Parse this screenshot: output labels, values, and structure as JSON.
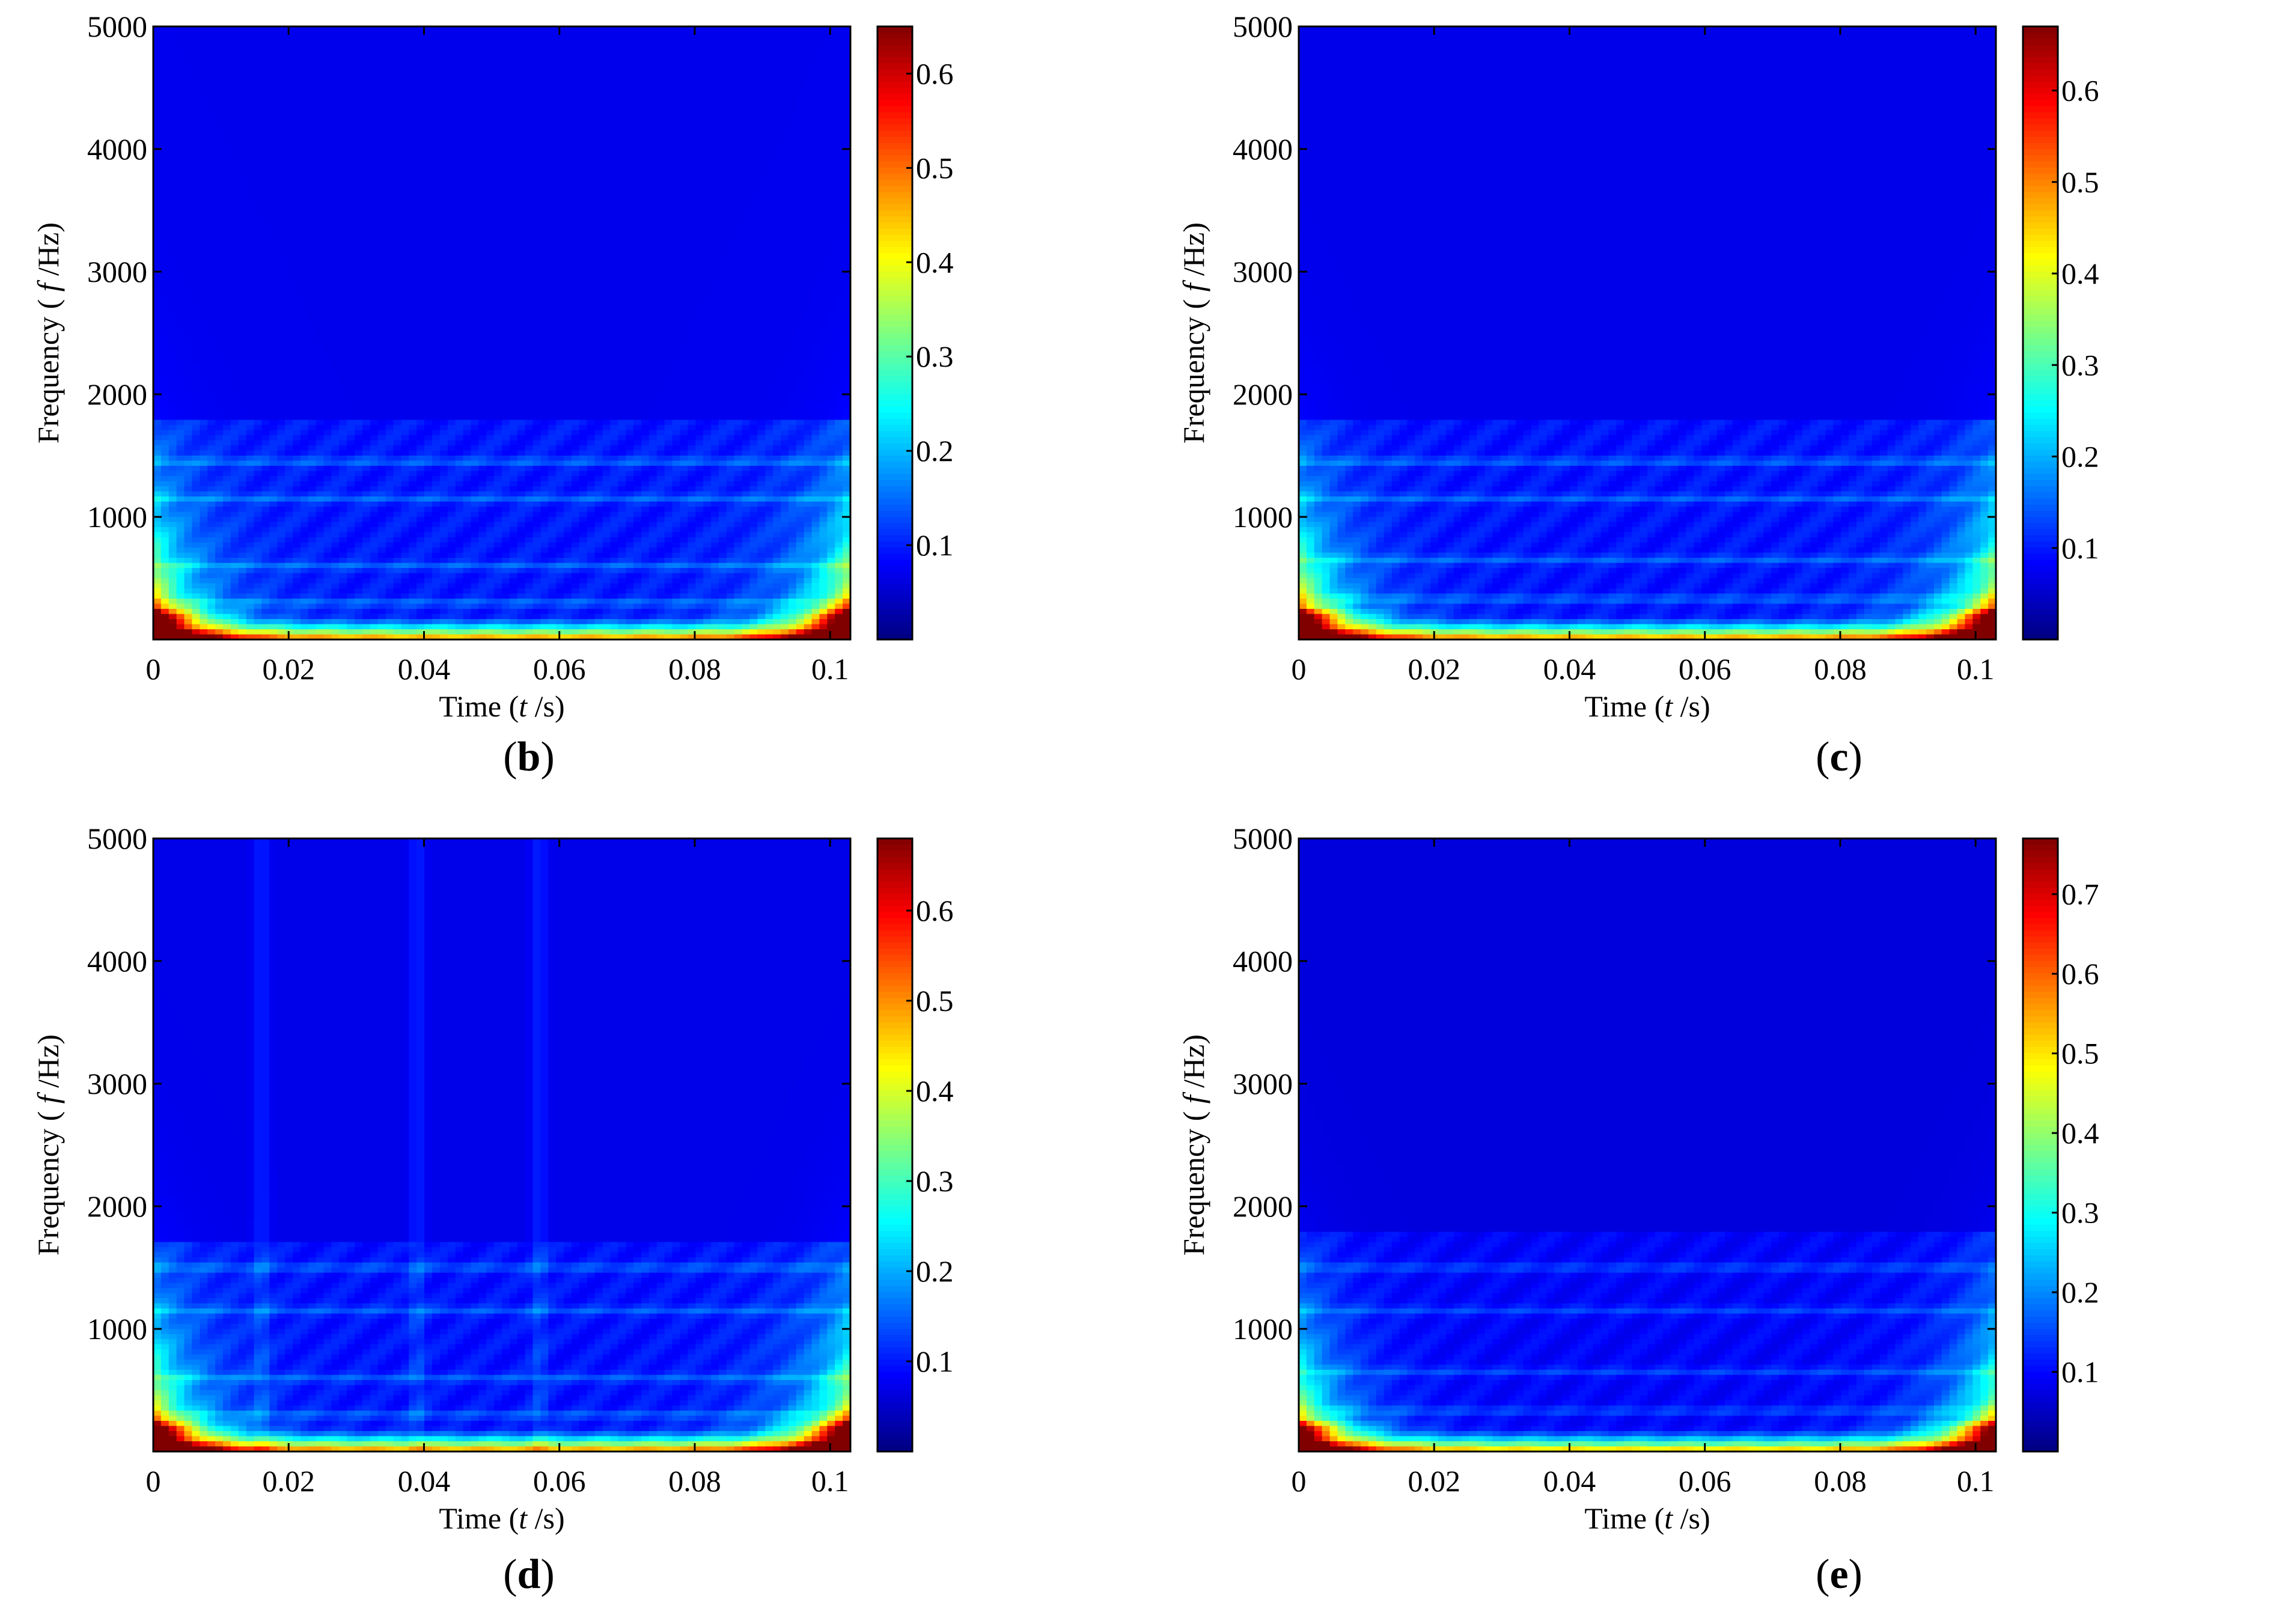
{
  "chart_data": [
    {
      "type": "heatmap",
      "panel": "b",
      "caption_open": "(",
      "caption_letter": "b",
      "caption_close": ")",
      "xlabel": {
        "pre": "Time (",
        "var": "t",
        "post": " /s)"
      },
      "ylabel": {
        "pre": "Frequency ( ",
        "var": "f",
        "post": " /Hz)"
      },
      "xlim": [
        0,
        0.103
      ],
      "ylim": [
        0,
        5000
      ],
      "xticks": [
        0,
        0.02,
        0.04,
        0.06,
        0.08,
        0.1
      ],
      "xtick_labels": [
        "0",
        "0.02",
        "0.04",
        "0.06",
        "0.08",
        "0.1"
      ],
      "yticks": [
        1000,
        2000,
        3000,
        4000,
        5000
      ],
      "ytick_labels": [
        "1000",
        "2000",
        "3000",
        "4000",
        "5000"
      ],
      "colorbar": {
        "min": 0,
        "max": 0.65,
        "ticks": [
          0.1,
          0.2,
          0.3,
          0.4,
          0.5,
          0.6
        ],
        "tick_labels": [
          "0.1",
          "0.2",
          "0.3",
          "0.4",
          "0.5",
          "0.6"
        ]
      },
      "features": {
        "band_top_hz": 1800,
        "low_peak": 0.62,
        "bands_hz": [
          120,
          300,
          600,
          1150,
          1450
        ],
        "vertical_streaks_s": []
      }
    },
    {
      "type": "heatmap",
      "panel": "c",
      "caption_open": "(",
      "caption_letter": "c",
      "caption_close": ")",
      "xlabel": {
        "pre": "Time (",
        "var": "t",
        "post": " /s)"
      },
      "ylabel": {
        "pre": "Frequency ( ",
        "var": "f",
        "post": " /Hz)"
      },
      "xlim": [
        0,
        0.103
      ],
      "ylim": [
        0,
        5000
      ],
      "xticks": [
        0,
        0.02,
        0.04,
        0.06,
        0.08,
        0.1
      ],
      "xtick_labels": [
        "0",
        "0.02",
        "0.04",
        "0.06",
        "0.08",
        "0.1"
      ],
      "yticks": [
        1000,
        2000,
        3000,
        4000,
        5000
      ],
      "ytick_labels": [
        "1000",
        "2000",
        "3000",
        "4000",
        "5000"
      ],
      "colorbar": {
        "min": 0,
        "max": 0.67,
        "ticks": [
          0.1,
          0.2,
          0.3,
          0.4,
          0.5,
          0.6
        ],
        "tick_labels": [
          "0.1",
          "0.2",
          "0.3",
          "0.4",
          "0.5",
          "0.6"
        ]
      },
      "features": {
        "band_top_hz": 1800,
        "low_peak": 0.64,
        "bands_hz": [
          120,
          330,
          650,
          1150,
          1450
        ],
        "vertical_streaks_s": []
      }
    },
    {
      "type": "heatmap",
      "panel": "d",
      "caption_open": "(",
      "caption_letter": "d",
      "caption_close": ")",
      "xlabel": {
        "pre": "Time (",
        "var": "t",
        "post": " /s)"
      },
      "ylabel": {
        "pre": "Frequency ( ",
        "var": "f",
        "post": " /Hz)"
      },
      "xlim": [
        0,
        0.103
      ],
      "ylim": [
        0,
        5000
      ],
      "xticks": [
        0,
        0.02,
        0.04,
        0.06,
        0.08,
        0.1
      ],
      "xtick_labels": [
        "0",
        "0.02",
        "0.04",
        "0.06",
        "0.08",
        "0.1"
      ],
      "yticks": [
        1000,
        2000,
        3000,
        4000,
        5000
      ],
      "ytick_labels": [
        "1000",
        "2000",
        "3000",
        "4000",
        "5000"
      ],
      "colorbar": {
        "min": 0,
        "max": 0.68,
        "ticks": [
          0.1,
          0.2,
          0.3,
          0.4,
          0.5,
          0.6
        ],
        "tick_labels": [
          "0.1",
          "0.2",
          "0.3",
          "0.4",
          "0.5",
          "0.6"
        ]
      },
      "features": {
        "band_top_hz": 1700,
        "low_peak": 0.66,
        "bands_hz": [
          120,
          300,
          600,
          1150,
          1500
        ],
        "vertical_streaks_s": [
          0.016,
          0.039,
          0.057
        ]
      }
    },
    {
      "type": "heatmap",
      "panel": "e",
      "caption_open": "(",
      "caption_letter": "e",
      "caption_close": ")",
      "xlabel": {
        "pre": "Time (",
        "var": "t",
        "post": " /s)"
      },
      "ylabel": {
        "pre": "Frequency ( ",
        "var": "f",
        "post": " /Hz)"
      },
      "xlim": [
        0,
        0.103
      ],
      "ylim": [
        0,
        5000
      ],
      "xticks": [
        0,
        0.02,
        0.04,
        0.06,
        0.08,
        0.1
      ],
      "xtick_labels": [
        "0",
        "0.02",
        "0.04",
        "0.06",
        "0.08",
        "0.1"
      ],
      "yticks": [
        1000,
        2000,
        3000,
        4000,
        5000
      ],
      "ytick_labels": [
        "1000",
        "2000",
        "3000",
        "4000",
        "5000"
      ],
      "colorbar": {
        "min": 0,
        "max": 0.77,
        "ticks": [
          0.1,
          0.2,
          0.3,
          0.4,
          0.5,
          0.6,
          0.7
        ],
        "tick_labels": [
          "0.1",
          "0.2",
          "0.3",
          "0.4",
          "0.5",
          "0.6",
          "0.7"
        ]
      },
      "features": {
        "band_top_hz": 1800,
        "low_peak": 0.7,
        "bands_hz": [
          120,
          330,
          650,
          1150,
          1500
        ],
        "vertical_streaks_s": []
      }
    }
  ],
  "colors": {
    "background_field": "#00008f",
    "colormap": "jet"
  }
}
